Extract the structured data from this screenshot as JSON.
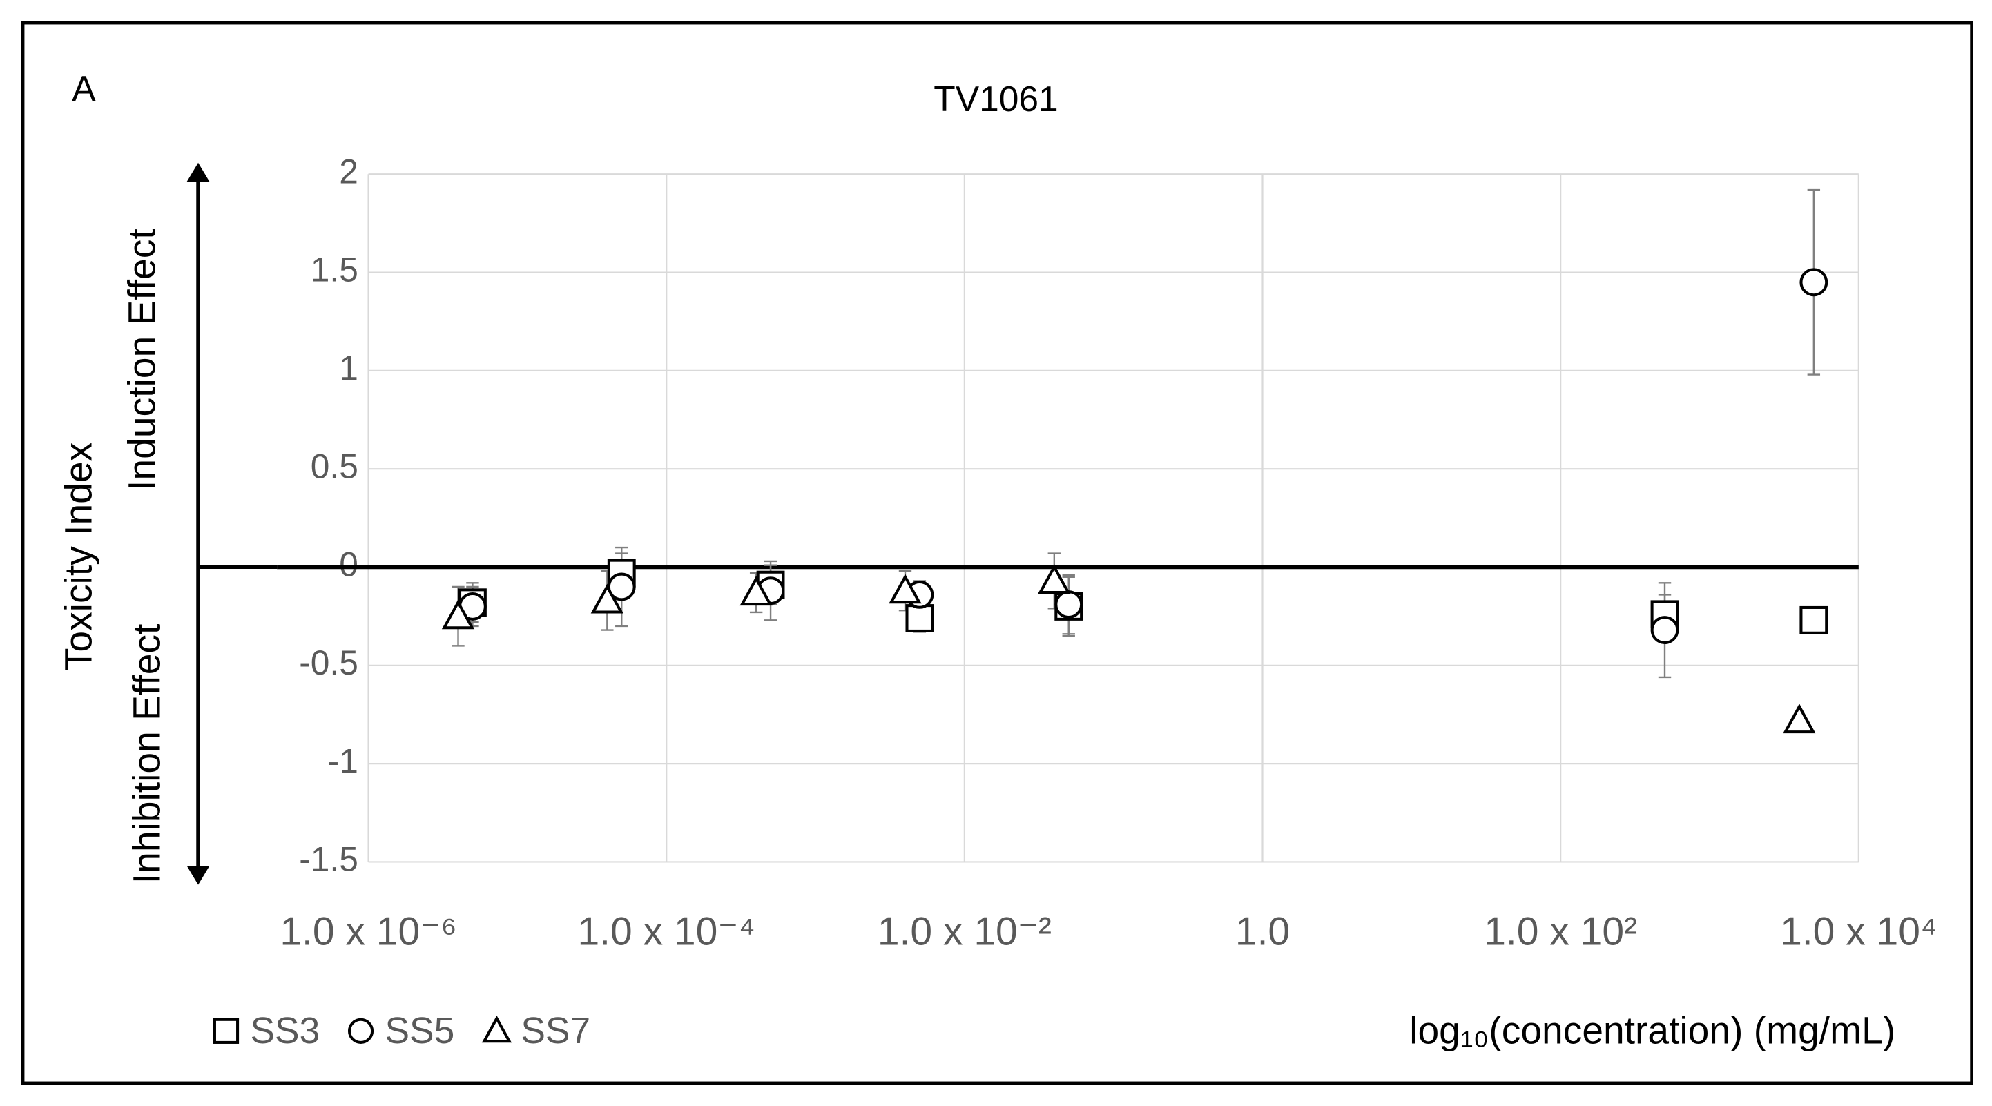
{
  "chart_data": {
    "type": "scatter",
    "panel_label": "A",
    "title": "TV1061",
    "y_label": "Toxicity Index",
    "y_label_upper": "Induction Effect",
    "y_label_lower": "Inhibition Effect",
    "x_label": "log₁₀(concentration) (mg/mL)",
    "x_scale": "log",
    "grid": true,
    "legend": "bottom-left",
    "xlim": [
      1e-06,
      10000
    ],
    "xticks": [
      {
        "value": 1e-06,
        "label": "1.0 x 10⁻⁶"
      },
      {
        "value": 0.0001,
        "label": "1.0 x 10⁻⁴"
      },
      {
        "value": 0.01,
        "label": "1.0 x 10⁻²"
      },
      {
        "value": 1,
        "label": "1.0"
      },
      {
        "value": 100,
        "label": "1.0 x 10²"
      },
      {
        "value": 10000,
        "label": "1.0 x 10⁴"
      }
    ],
    "ylim": [
      -1.5,
      2
    ],
    "yticks": [
      2,
      1.5,
      1,
      0.5,
      0,
      -0.5,
      -1,
      -1.5
    ],
    "series": [
      {
        "name": "SS3",
        "marker": "square",
        "color": "#000000",
        "x": [
          5e-06,
          5e-05,
          0.0005,
          0.005,
          0.05,
          500,
          5000
        ],
        "values": [
          -0.18,
          -0.03,
          -0.09,
          -0.26,
          -0.2,
          -0.24,
          -0.27
        ],
        "errors": [
          0.1,
          0.1,
          0.1,
          0.07,
          0.15,
          0.1,
          null
        ]
      },
      {
        "name": "SS5",
        "marker": "circle",
        "color": "#000000",
        "x": [
          5e-06,
          5e-05,
          0.0005,
          0.005,
          0.05,
          500,
          5000
        ],
        "values": [
          -0.2,
          -0.1,
          -0.12,
          -0.14,
          -0.19,
          -0.32,
          1.45
        ],
        "errors": [
          0.1,
          0.2,
          0.15,
          0.07,
          0.15,
          0.24,
          0.47
        ]
      },
      {
        "name": "SS7",
        "marker": "triangle",
        "color": "#000000",
        "x": [
          4e-06,
          4e-05,
          0.0004,
          0.004,
          0.04,
          4000
        ],
        "values": [
          -0.25,
          -0.17,
          -0.13,
          -0.12,
          -0.07,
          -0.78
        ],
        "errors": [
          0.15,
          0.15,
          0.1,
          0.1,
          0.14,
          null
        ]
      }
    ]
  }
}
